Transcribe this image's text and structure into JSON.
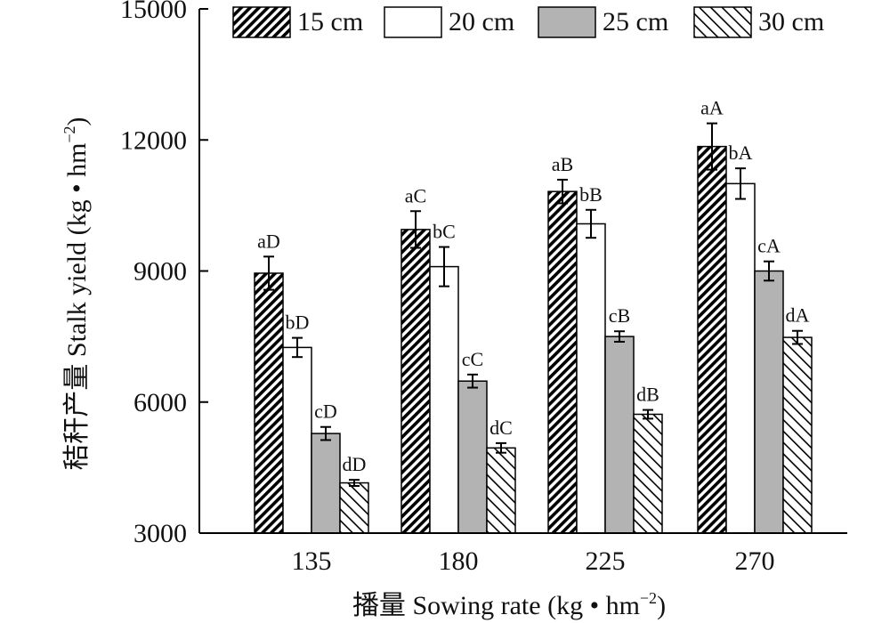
{
  "chart_data": {
    "type": "bar",
    "title": "",
    "categories": [
      "135",
      "180",
      "225",
      "270"
    ],
    "xlabel": {
      "zh": "播量",
      "en": "Sowing rate (kg • hm",
      "sup": "−2",
      "end": ")"
    },
    "ylabel": {
      "zh": "秸秆产量",
      "en": "Stalk yield (kg • hm",
      "sup": "−2",
      "end": ")"
    },
    "ylim": [
      3000,
      15000
    ],
    "yticks": [
      "3000",
      "6000",
      "9000",
      "12000",
      "15000"
    ],
    "legend_position": "top",
    "series": [
      {
        "name": "15 cm",
        "fill": "hatch-forward-dense",
        "color": "#000000",
        "values": [
          8950,
          9950,
          10820,
          11850
        ],
        "errors": [
          380,
          420,
          270,
          530
        ],
        "labels": [
          "aD",
          "aC",
          "aB",
          "aA"
        ]
      },
      {
        "name": "20 cm",
        "fill": "white",
        "color": "#ffffff",
        "values": [
          7250,
          9100,
          10080,
          11000
        ],
        "errors": [
          220,
          450,
          320,
          350
        ],
        "labels": [
          "bD",
          "bC",
          "bB",
          "bA"
        ]
      },
      {
        "name": "25 cm",
        "fill": "gray",
        "color": "#b3b3b3",
        "values": [
          5280,
          6480,
          7500,
          9000
        ],
        "errors": [
          150,
          150,
          120,
          220
        ],
        "labels": [
          "cD",
          "cC",
          "cB",
          "cA"
        ]
      },
      {
        "name": "30 cm",
        "fill": "hatch-backward",
        "color": "#000000",
        "values": [
          4150,
          4950,
          5720,
          7480
        ],
        "errors": [
          70,
          110,
          100,
          150
        ],
        "labels": [
          "dD",
          "dC",
          "dB",
          "dA"
        ]
      }
    ]
  }
}
